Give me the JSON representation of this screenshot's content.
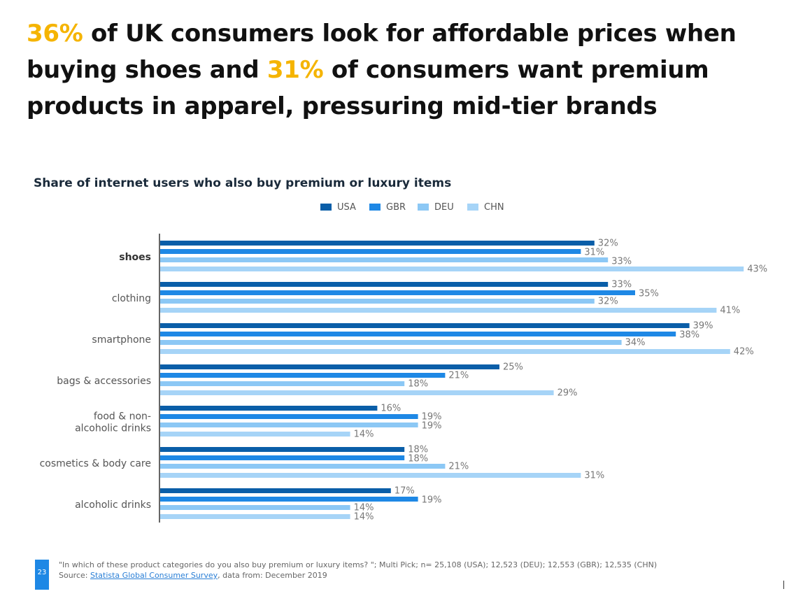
{
  "headline": {
    "pct1": "36%",
    "text1": " of UK consumers look for affordable prices when buying shoes and ",
    "pct2": "31%",
    "text2": " of consumers want premium products in apparel, pressuring mid-tier brands"
  },
  "colors": {
    "accent": "#f5b400",
    "USA": "#0a5ea8",
    "GBR": "#1e88e5",
    "DEU": "#8cc8f5",
    "CHN": "#a6d4f7"
  },
  "chart_data": {
    "type": "bar",
    "orientation": "horizontal",
    "title": "Share of internet users who also buy premium or luxury items",
    "legend_position": "top",
    "grid": false,
    "xlim": [
      0,
      45
    ],
    "unit": "%",
    "categories": [
      "shoes",
      "clothing",
      "smartphone",
      "bags & accessories",
      "food & non-alcoholic drinks",
      "cosmetics & body care",
      "alcoholic drinks"
    ],
    "category_lines": [
      [
        "shoes"
      ],
      [
        "clothing"
      ],
      [
        "smartphone"
      ],
      [
        "bags & accessories"
      ],
      [
        "food & non-",
        "alcoholic drinks"
      ],
      [
        "cosmetics & body care"
      ],
      [
        "alcoholic drinks"
      ]
    ],
    "highlighted_category": "shoes",
    "series": [
      {
        "name": "USA",
        "values": [
          32,
          33,
          39,
          25,
          16,
          18,
          17
        ]
      },
      {
        "name": "GBR",
        "values": [
          31,
          35,
          38,
          21,
          19,
          18,
          19
        ]
      },
      {
        "name": "DEU",
        "values": [
          33,
          32,
          34,
          18,
          19,
          21,
          14
        ]
      },
      {
        "name": "CHN",
        "values": [
          43,
          41,
          42,
          29,
          14,
          31,
          14
        ]
      }
    ]
  },
  "footer": {
    "page_number": "23",
    "note": "\"In which of these product categories do you also buy premium or luxury items? \"; Multi Pick; n= 25,108 (USA); 12,523 (DEU); 12,553 (GBR); 12,535 (CHN)",
    "source_prefix": "Source: ",
    "source_link": "Statista Global Consumer Survey",
    "source_suffix": ", data from: December 2019"
  }
}
